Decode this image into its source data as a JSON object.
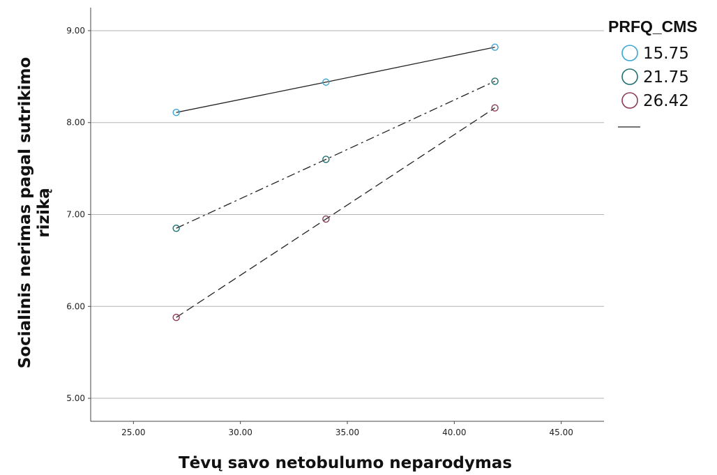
{
  "chart_data": {
    "type": "line",
    "xlabel": "Tėvų savo netobulumo neparodymas",
    "ylabel_line1": "Socialinis nerimas pagal sutrikimo",
    "ylabel_line2": "riziką",
    "xlim": [
      23.0,
      47.0
    ],
    "ylim": [
      4.75,
      9.25
    ],
    "xticks": [
      25,
      30,
      35,
      40,
      45
    ],
    "xtick_labels": [
      "25.00",
      "30.00",
      "35.00",
      "40.00",
      "45.00"
    ],
    "yticks": [
      5,
      6,
      7,
      8,
      9
    ],
    "ytick_labels": [
      "5.00",
      "6.00",
      "7.00",
      "8.00",
      "9.00"
    ],
    "grid": "horizontal",
    "legend_position": "right",
    "legend_title": "PRFQ_CMS",
    "series": [
      {
        "name": "15.75",
        "color": "#3aa6d4",
        "line_style": "solid",
        "x": [
          27.0,
          34.0,
          41.9
        ],
        "y": [
          8.11,
          8.44,
          8.82
        ]
      },
      {
        "name": "21.75",
        "color": "#1f6f6f",
        "line_style": "dash-dot",
        "x": [
          27.0,
          34.0,
          41.9
        ],
        "y": [
          6.85,
          7.6,
          8.45
        ]
      },
      {
        "name": "26.42",
        "color": "#8b3a5a",
        "line_style": "dashed",
        "x": [
          27.0,
          34.0,
          41.9
        ],
        "y": [
          5.88,
          6.95,
          8.16
        ]
      }
    ]
  }
}
